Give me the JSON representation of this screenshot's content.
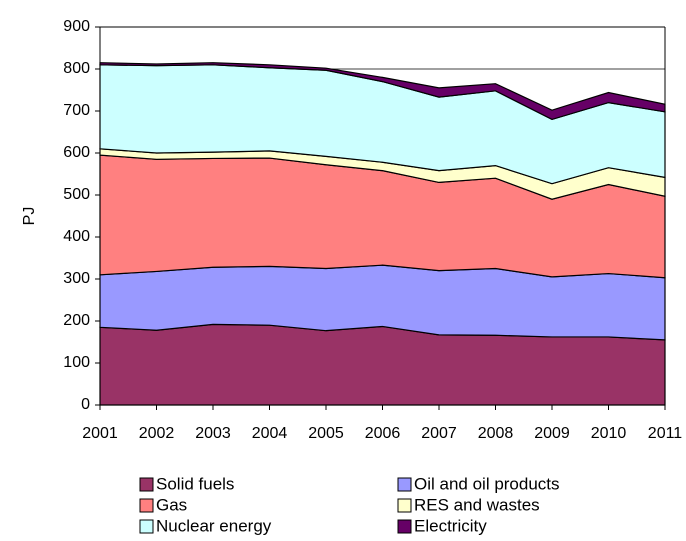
{
  "chart_data": {
    "type": "stacked_area",
    "y_label": "PJ",
    "categories": [
      "2001",
      "2002",
      "2003",
      "2004",
      "2005",
      "2006",
      "2007",
      "2008",
      "2009",
      "2010",
      "2011"
    ],
    "series": [
      {
        "name": "Solid fuels",
        "color": "#993366",
        "values": [
          185,
          178,
          192,
          190,
          177,
          187,
          167,
          166,
          162,
          162,
          155
        ]
      },
      {
        "name": "Oil and oil products",
        "color": "#9999ff",
        "values": [
          125,
          140,
          136,
          140,
          148,
          146,
          153,
          159,
          143,
          151,
          148
        ]
      },
      {
        "name": "Gas",
        "color": "#ff8080",
        "values": [
          285,
          267,
          259,
          258,
          247,
          225,
          210,
          215,
          185,
          212,
          194
        ]
      },
      {
        "name": "RES and wastes",
        "color": "#ffffcc",
        "values": [
          15,
          15,
          15,
          17,
          20,
          20,
          28,
          30,
          37,
          40,
          45
        ]
      },
      {
        "name": "Nuclear energy",
        "color": "#ccffff",
        "values": [
          200,
          208,
          208,
          198,
          205,
          192,
          175,
          178,
          153,
          155,
          156
        ]
      },
      {
        "name": "Electricity",
        "color": "#660066",
        "values": [
          5,
          4,
          5,
          7,
          5,
          10,
          22,
          17,
          22,
          24,
          18
        ]
      }
    ],
    "ylim": [
      0,
      900
    ],
    "yticks": [
      0,
      100,
      200,
      300,
      400,
      500,
      600,
      700,
      800,
      900
    ],
    "grid": true
  }
}
